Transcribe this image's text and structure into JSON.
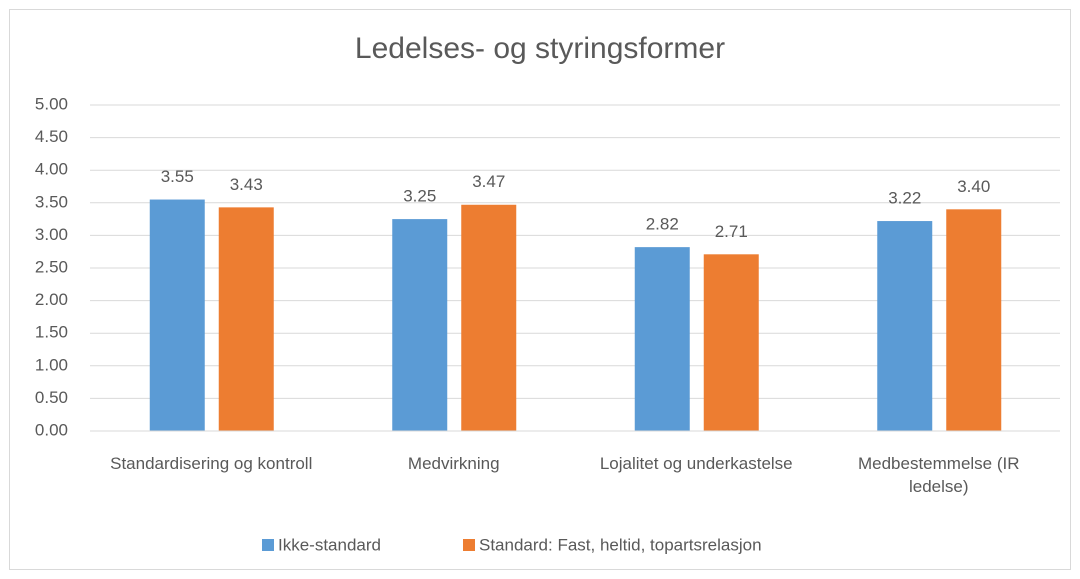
{
  "chart_data": {
    "type": "bar",
    "title": "Ledelses- og styringsformer",
    "categories": [
      "Standardisering og kontroll",
      "Medvirkning",
      "Lojalitet og underkastelse",
      "Medbestemmelse (IR ledelse)"
    ],
    "series": [
      {
        "name": "Ikke-standard",
        "color": "#5b9bd5",
        "values": [
          3.55,
          3.25,
          2.82,
          3.22
        ],
        "value_labels": [
          "3.55",
          "3.25",
          "2.82",
          "3.22"
        ]
      },
      {
        "name": "Standard: Fast, heltid, topartsrelasjon",
        "color": "#ed7d31",
        "values": [
          3.43,
          3.47,
          2.71,
          3.4
        ],
        "value_labels": [
          "3.43",
          "3.47",
          "2.71",
          "3.40"
        ]
      }
    ],
    "ylim": [
      0,
      5
    ],
    "yticks": [
      {
        "value": 0,
        "label": "0.00"
      },
      {
        "value": 0.5,
        "label": "0.50"
      },
      {
        "value": 1,
        "label": "1.00"
      },
      {
        "value": 1.5,
        "label": "1.50"
      },
      {
        "value": 2,
        "label": "2.00"
      },
      {
        "value": 2.5,
        "label": "2.50"
      },
      {
        "value": 3,
        "label": "3.00"
      },
      {
        "value": 3.5,
        "label": "3.50"
      },
      {
        "value": 4,
        "label": "4.00"
      },
      {
        "value": 4.5,
        "label": "4.50"
      },
      {
        "value": 5,
        "label": "5.00"
      }
    ],
    "grid": true,
    "legend": "bottom"
  }
}
